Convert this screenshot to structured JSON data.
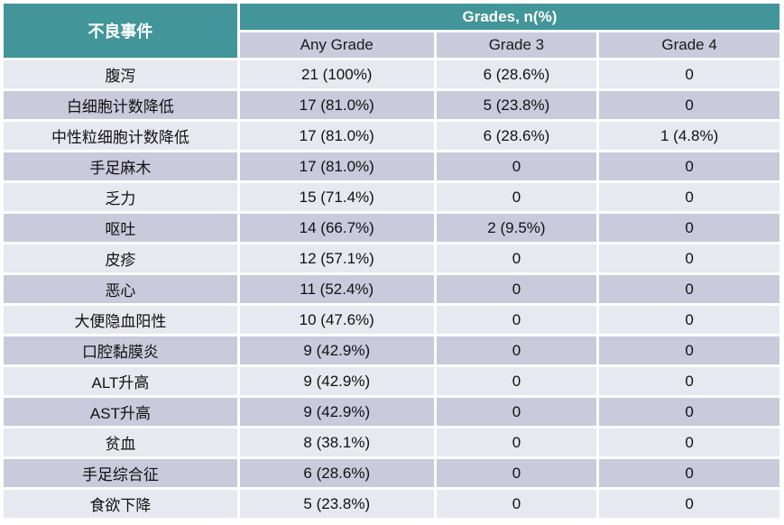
{
  "chart_data": {
    "type": "table",
    "col1_header": "不良事件",
    "group_header": "Grades, n(%)",
    "columns": [
      "Any Grade",
      "Grade 3",
      "Grade 4"
    ],
    "rows": [
      {
        "event": "腹泻",
        "any_grade": "21 (100%)",
        "grade3": "6 (28.6%)",
        "grade4": "0"
      },
      {
        "event": "白细胞计数降低",
        "any_grade": "17 (81.0%)",
        "grade3": "5 (23.8%)",
        "grade4": "0"
      },
      {
        "event": "中性粒细胞计数降低",
        "any_grade": "17 (81.0%)",
        "grade3": "6 (28.6%)",
        "grade4": "1 (4.8%)"
      },
      {
        "event": "手足麻木",
        "any_grade": "17 (81.0%)",
        "grade3": "0",
        "grade4": "0"
      },
      {
        "event": "乏力",
        "any_grade": "15 (71.4%)",
        "grade3": "0",
        "grade4": "0"
      },
      {
        "event": "呕吐",
        "any_grade": "14 (66.7%)",
        "grade3": "2 (9.5%)",
        "grade4": "0"
      },
      {
        "event": "皮疹",
        "any_grade": "12 (57.1%)",
        "grade3": "0",
        "grade4": "0"
      },
      {
        "event": "恶心",
        "any_grade": "11 (52.4%)",
        "grade3": "0",
        "grade4": "0"
      },
      {
        "event": "大便隐血阳性",
        "any_grade": "10 (47.6%)",
        "grade3": "0",
        "grade4": "0"
      },
      {
        "event": "口腔黏膜炎",
        "any_grade": "9 (42.9%)",
        "grade3": "0",
        "grade4": "0"
      },
      {
        "event": "ALT升高",
        "any_grade": "9 (42.9%)",
        "grade3": "0",
        "grade4": "0"
      },
      {
        "event": "AST升高",
        "any_grade": "9 (42.9%)",
        "grade3": "0",
        "grade4": "0"
      },
      {
        "event": "贫血",
        "any_grade": "8 (38.1%)",
        "grade3": "0",
        "grade4": "0"
      },
      {
        "event": "手足综合征",
        "any_grade": "6 (28.6%)",
        "grade3": "0",
        "grade4": "0"
      },
      {
        "event": "食欲下降",
        "any_grade": "5 (23.8%)",
        "grade3": "0",
        "grade4": "0"
      }
    ]
  },
  "colors": {
    "header_teal": "#429598",
    "subheader_bg": "#CCCADD",
    "row_light": "#E8E8F0",
    "row_dark": "#CBC9DC",
    "header_text": "#FFFFFF",
    "body_text": "#111111"
  }
}
